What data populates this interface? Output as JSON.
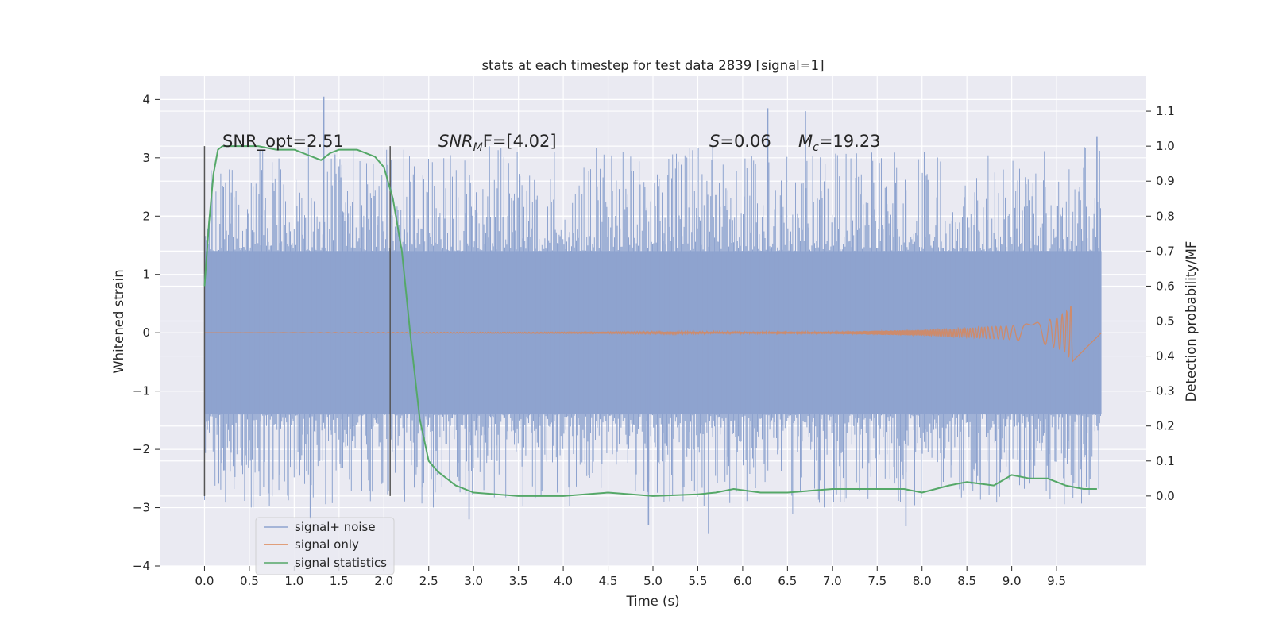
{
  "chart_data": {
    "type": "line",
    "title": "stats at each timestep for test data 2839 [signal=1]",
    "xlabel": "Time (s)",
    "ylabel_left": "Whitened strain",
    "ylabel_right": "Detection probability/MF",
    "xlim": [
      -0.5,
      10.5
    ],
    "ylim_left": [
      -4,
      4.4
    ],
    "ylim_right": [
      -0.2,
      1.2
    ],
    "x_ticks": [
      0.0,
      0.5,
      1.0,
      1.5,
      2.0,
      2.5,
      3.0,
      3.5,
      4.0,
      4.5,
      5.0,
      5.5,
      6.0,
      6.5,
      7.0,
      7.5,
      8.0,
      8.5,
      9.0,
      9.5
    ],
    "x_tick_labels": [
      "0.0",
      "0.5",
      "1.0",
      "1.5",
      "2.0",
      "2.5",
      "3.0",
      "3.5",
      "4.0",
      "4.5",
      "5.0",
      "5.5",
      "6.0",
      "6.5",
      "7.0",
      "7.5",
      "8.0",
      "8.5",
      "9.0",
      "9.5"
    ],
    "y_left_ticks": [
      -4,
      -3,
      -2,
      -1,
      0,
      1,
      2,
      3,
      4
    ],
    "y_left_tick_labels": [
      "−4",
      "−3",
      "−2",
      "−1",
      "0",
      "1",
      "2",
      "3",
      "4"
    ],
    "y_right_ticks": [
      0.0,
      0.1,
      0.2,
      0.3,
      0.4,
      0.5,
      0.6,
      0.7,
      0.8,
      0.9,
      1.0,
      1.1
    ],
    "y_right_tick_labels": [
      "0.0",
      "0.1",
      "0.2",
      "0.3",
      "0.4",
      "0.5",
      "0.6",
      "0.7",
      "0.8",
      "0.9",
      "1.0",
      "1.1"
    ],
    "grid": true,
    "legend_position": "lower-left",
    "annotations": {
      "snr_opt": "SNR_opt=2.51",
      "snr_mf_main": "SNR",
      "snr_mf_sub": "M",
      "snr_mf_rest": "F=[4.02]",
      "s_main": "S",
      "s_rest": "=0.06",
      "mc_main": "M",
      "mc_sub": "c",
      "mc_rest": "=19.23"
    },
    "vertical_markers": [
      0.0,
      2.07
    ],
    "series": [
      {
        "name": "signal+ noise",
        "color": "#8ea3cf",
        "x_range": [
          0.0,
          10.0
        ],
        "noise_band": [
          -1.4,
          1.4
        ],
        "peaks": [
          {
            "x": 1.33,
            "y": 4.05
          },
          {
            "x": 6.28,
            "y": 3.85
          },
          {
            "x": 6.7,
            "y": 3.8
          },
          {
            "x": 9.95,
            "y": 3.37
          },
          {
            "x": 1.18,
            "y": -3.2
          },
          {
            "x": 5.62,
            "y": -3.45
          },
          {
            "x": 7.82,
            "y": -3.32
          },
          {
            "x": 2.95,
            "y": -3.2
          },
          {
            "x": 4.95,
            "y": -3.3
          }
        ]
      },
      {
        "name": "signal only",
        "color": "#dd8452",
        "x": [
          0.0,
          7.0,
          8.0,
          8.5,
          9.0,
          9.3,
          9.5,
          9.6,
          9.65,
          9.68,
          10.0
        ],
        "amplitude": [
          0.0,
          0.02,
          0.05,
          0.08,
          0.12,
          0.18,
          0.26,
          0.35,
          0.45,
          0.5,
          0.0
        ]
      },
      {
        "name": "signal statistics",
        "color": "#55a868",
        "x": [
          0.0,
          0.05,
          0.1,
          0.15,
          0.2,
          0.4,
          0.6,
          0.8,
          1.0,
          1.1,
          1.2,
          1.3,
          1.4,
          1.5,
          1.7,
          1.9,
          2.0,
          2.1,
          2.2,
          2.3,
          2.4,
          2.5,
          2.6,
          2.8,
          3.0,
          3.5,
          4.0,
          4.5,
          5.0,
          5.5,
          5.7,
          5.9,
          6.2,
          6.5,
          7.0,
          7.5,
          7.8,
          8.0,
          8.3,
          8.5,
          8.8,
          9.0,
          9.2,
          9.4,
          9.6,
          9.8,
          9.95
        ],
        "y": [
          0.6,
          0.78,
          0.92,
          0.99,
          1.0,
          1.0,
          1.0,
          0.99,
          0.99,
          0.98,
          0.97,
          0.96,
          0.98,
          0.99,
          0.99,
          0.97,
          0.94,
          0.85,
          0.7,
          0.45,
          0.22,
          0.1,
          0.07,
          0.03,
          0.01,
          0.0,
          0.0,
          0.01,
          0.0,
          0.005,
          0.01,
          0.02,
          0.01,
          0.01,
          0.02,
          0.02,
          0.02,
          0.01,
          0.03,
          0.04,
          0.03,
          0.06,
          0.05,
          0.05,
          0.03,
          0.02,
          0.02
        ]
      }
    ]
  }
}
